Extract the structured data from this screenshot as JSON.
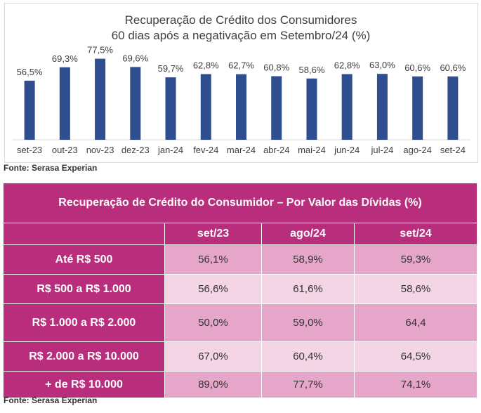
{
  "chart_data": [
    {
      "type": "bar",
      "title": "Recuperação de Crédito dos Consumidores",
      "subtitle": "60 dias após a negativação em Setembro/24 (%)",
      "categories": [
        "set-23",
        "out-23",
        "nov-23",
        "dez-23",
        "jan-24",
        "fev-24",
        "mar-24",
        "abr-24",
        "mai-24",
        "jun-24",
        "jul-24",
        "ago-24",
        "set-24"
      ],
      "values": [
        56.5,
        69.3,
        77.5,
        69.6,
        59.7,
        62.8,
        62.7,
        60.8,
        58.6,
        62.8,
        63.0,
        60.6,
        60.6
      ],
      "value_labels": [
        "56,5%",
        "69,3%",
        "77,5%",
        "69,6%",
        "59,7%",
        "62,8%",
        "62,7%",
        "60,8%",
        "58,6%",
        "62,8%",
        "63,0%",
        "60,6%",
        "60,6%"
      ],
      "ylim": [
        0,
        90
      ],
      "grid": false,
      "colors": {
        "bar": "#2e4e8f",
        "text": "#404040",
        "axis": "#d9d9d9"
      }
    },
    {
      "type": "table",
      "title": "Recuperação de Crédito do Consumidor – Por Valor das Dívidas (%)",
      "columns": [
        "",
        "set/23",
        "ago/24",
        "set/24"
      ],
      "rows": [
        {
          "label": "Até R$ 500",
          "values": [
            "56,1%",
            "58,9%",
            "59,3%"
          ]
        },
        {
          "label": "R$ 500 a R$ 1.000",
          "values": [
            "56,6%",
            "61,6%",
            "58,6%"
          ]
        },
        {
          "label": "R$ 1.000 a R$ 2.000",
          "values": [
            "50,0%",
            "59,0%",
            "64,4"
          ]
        },
        {
          "label": "R$ 2.000 a R$ 10.000",
          "values": [
            "67,0%",
            "60,4%",
            "64,5%"
          ]
        },
        {
          "label": "+ de R$ 10.000",
          "values": [
            "89,0%",
            "77,7%",
            "74,1%"
          ]
        }
      ],
      "colors": {
        "header": "#b82d7c",
        "cell_dark": "#e6a6ca",
        "cell_light": "#f3d5e6"
      }
    }
  ],
  "source_top": "Fonte: Serasa Experian",
  "source_bottom": "Fonte: Serasa Experian"
}
